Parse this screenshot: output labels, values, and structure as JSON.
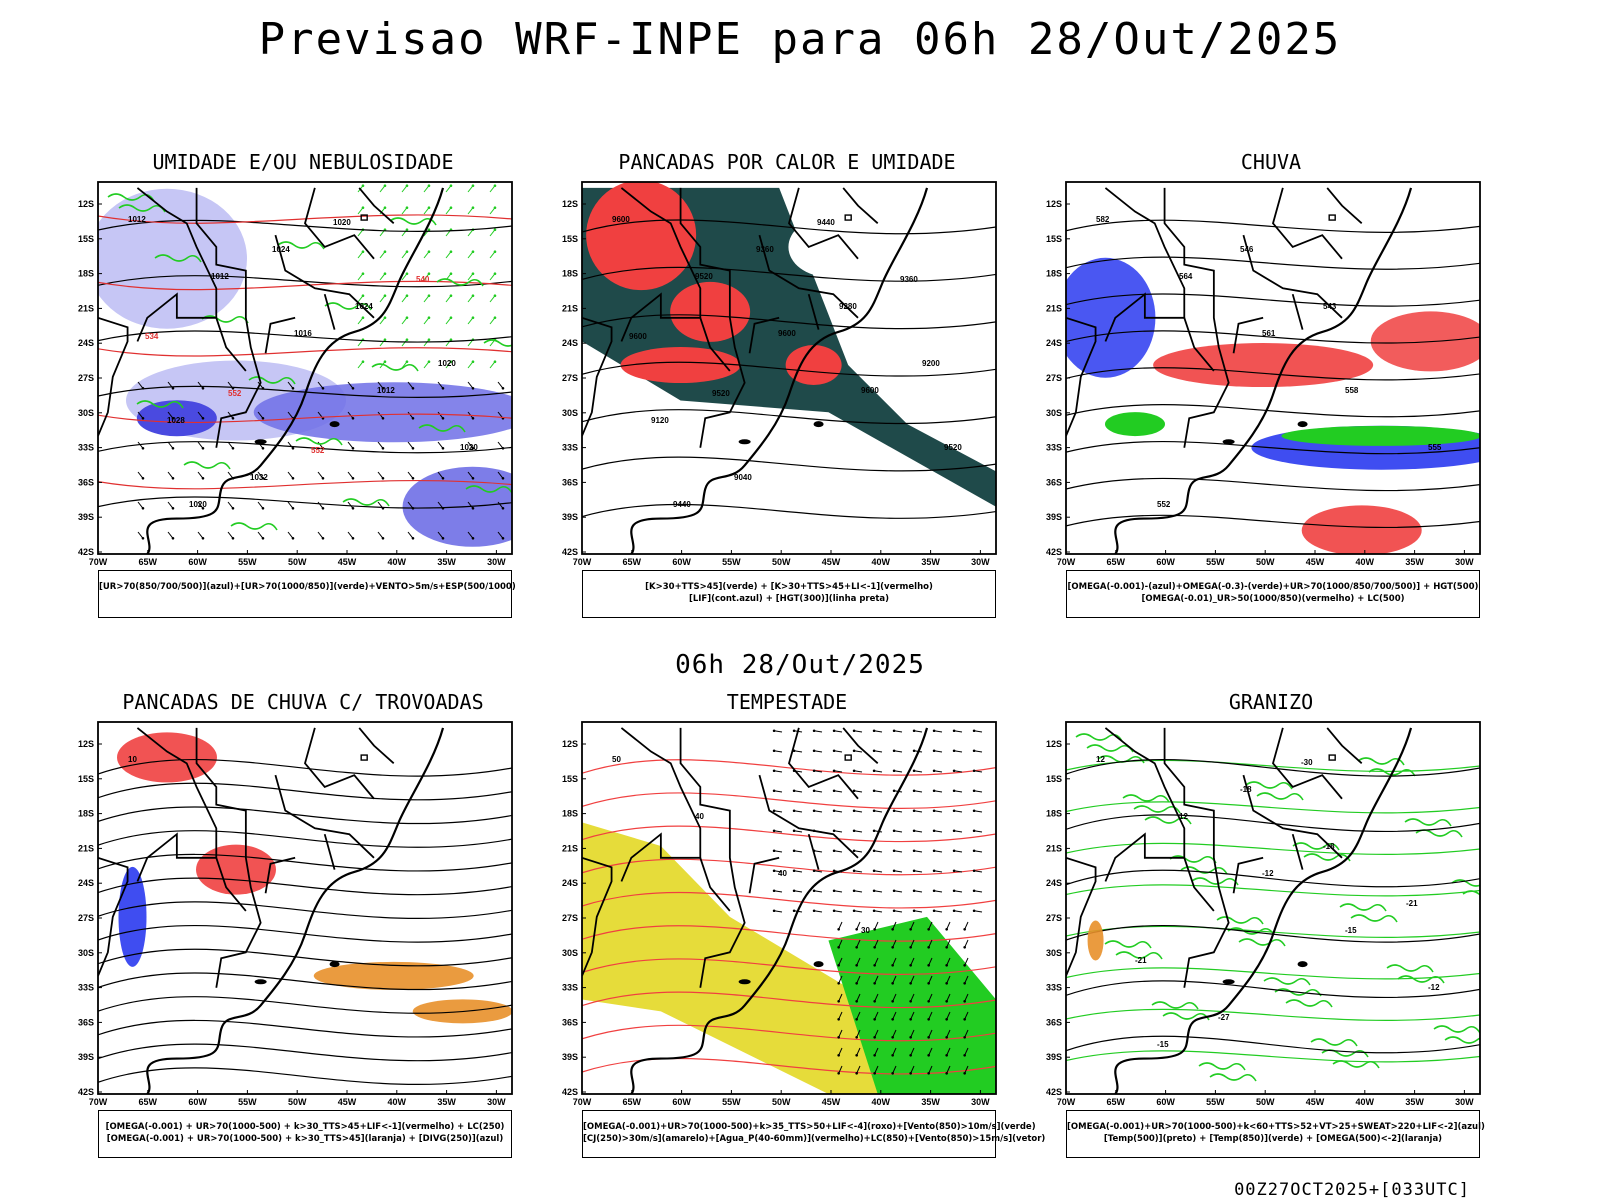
{
  "title": "Previsao WRF-INPE  para 06h 28/Out/2025",
  "mid_title": "06h 28/Out/2025",
  "footer": "00Z27OCT2025+[033UTC]",
  "axes": {
    "lat_labels": [
      "12S",
      "15S",
      "18S",
      "21S",
      "24S",
      "27S",
      "30S",
      "33S",
      "36S",
      "39S",
      "42S"
    ],
    "lon_labels": [
      "70W",
      "65W",
      "60W",
      "55W",
      "50W",
      "45W",
      "40W",
      "35W",
      "30W"
    ]
  },
  "colors": {
    "light_blue": "#c6c6f5",
    "blue": "#6f6fe6",
    "dark_blue": "#4a4ae0",
    "green": "#22cc22",
    "red": "#f04040",
    "dark_teal": "#1f4a4a",
    "orange": "#e8902a",
    "yellow": "#e6dc3a",
    "royal_blue": "#2a3af0"
  },
  "panels": [
    {
      "id": "umidade",
      "title": "UMIDADE E/OU NEBULOSIDADE",
      "legend": [
        "[UR>70(850/700/500)](azul)+[UR>70(1000/850)](verde)+VENTO>5m/s+ESP(500/1000)"
      ],
      "labels": [
        "1012",
        "1012",
        "1016",
        "1012",
        "1020",
        "1020",
        "1024",
        "1024",
        "1020",
        "1028",
        "1032",
        "1020",
        "540",
        "534",
        "552",
        "552"
      ]
    },
    {
      "id": "pancadas-calor",
      "title": "PANCADAS POR CALOR E UMIDADE",
      "legend": [
        "[K>30+TTS>45](verde) + [K>30+TTS>45+LI<-1](vermelho)",
        "[LIF](cont.azul) + [HGT(300)](linha preta)"
      ],
      "labels": [
        "9600",
        "9520",
        "9600",
        "9600",
        "9520",
        "9440",
        "9360",
        "9280",
        "9200",
        "9120",
        "9040",
        "9440",
        "9360",
        "9600",
        "9520"
      ]
    },
    {
      "id": "chuva",
      "title": "CHUVA",
      "legend": [
        "[OMEGA(-0.001)-(azul)+OMEGA(-0.3)-(verde)+UR>70(1000/850/700/500)] + HGT(500)",
        "[OMEGA(-0.01)_UR>50(1000/850)(vermelho) + LC(500)"
      ],
      "labels": [
        "582",
        "564",
        "561",
        "558",
        "555",
        "552",
        "546",
        "543"
      ]
    },
    {
      "id": "trovoadas",
      "title": "PANCADAS DE CHUVA C/ TROVOADAS",
      "legend": [
        "[OMEGA(-0.001) + UR>70(1000-500) + k>30_TTS>45+LIF<-1](vermelho) + LC(250)",
        "[OMEGA(-0.001) + UR>70(1000-500) + k>30_TTS>45](laranja) + [DIVG(250)](azul)"
      ],
      "labels": [
        "10"
      ]
    },
    {
      "id": "tempestade",
      "title": "TEMPESTADE",
      "legend": [
        "[OMEGA(-0.001)+UR>70(1000-500)+k>35_TTS>50+LIF<-4](roxo)+[Vento(850)>10m/s](verde)",
        "[CJ(250)>30m/s](amarelo)+[Agua_P(40-60mm)](vermelho)+LC(850)+[Vento(850)>15m/s](vetor)"
      ],
      "labels": [
        "50",
        "40",
        "40",
        "30"
      ]
    },
    {
      "id": "granizo",
      "title": "GRANIZO",
      "legend": [
        "[OMEGA(-0.001)+UR>70(1000-500)+k<60+TTS>52+VT>25+SWEAT>220+LIF<-2](azul)",
        "[Temp(500)](preto) + [Temp(850)](verde) + [OMEGA(500)<-2](laranja)"
      ],
      "labels": [
        "12",
        "12",
        "-12",
        "-15",
        "-12",
        "-15",
        "-18",
        "-18",
        "-21",
        "-21",
        "-27",
        "-30"
      ]
    }
  ]
}
